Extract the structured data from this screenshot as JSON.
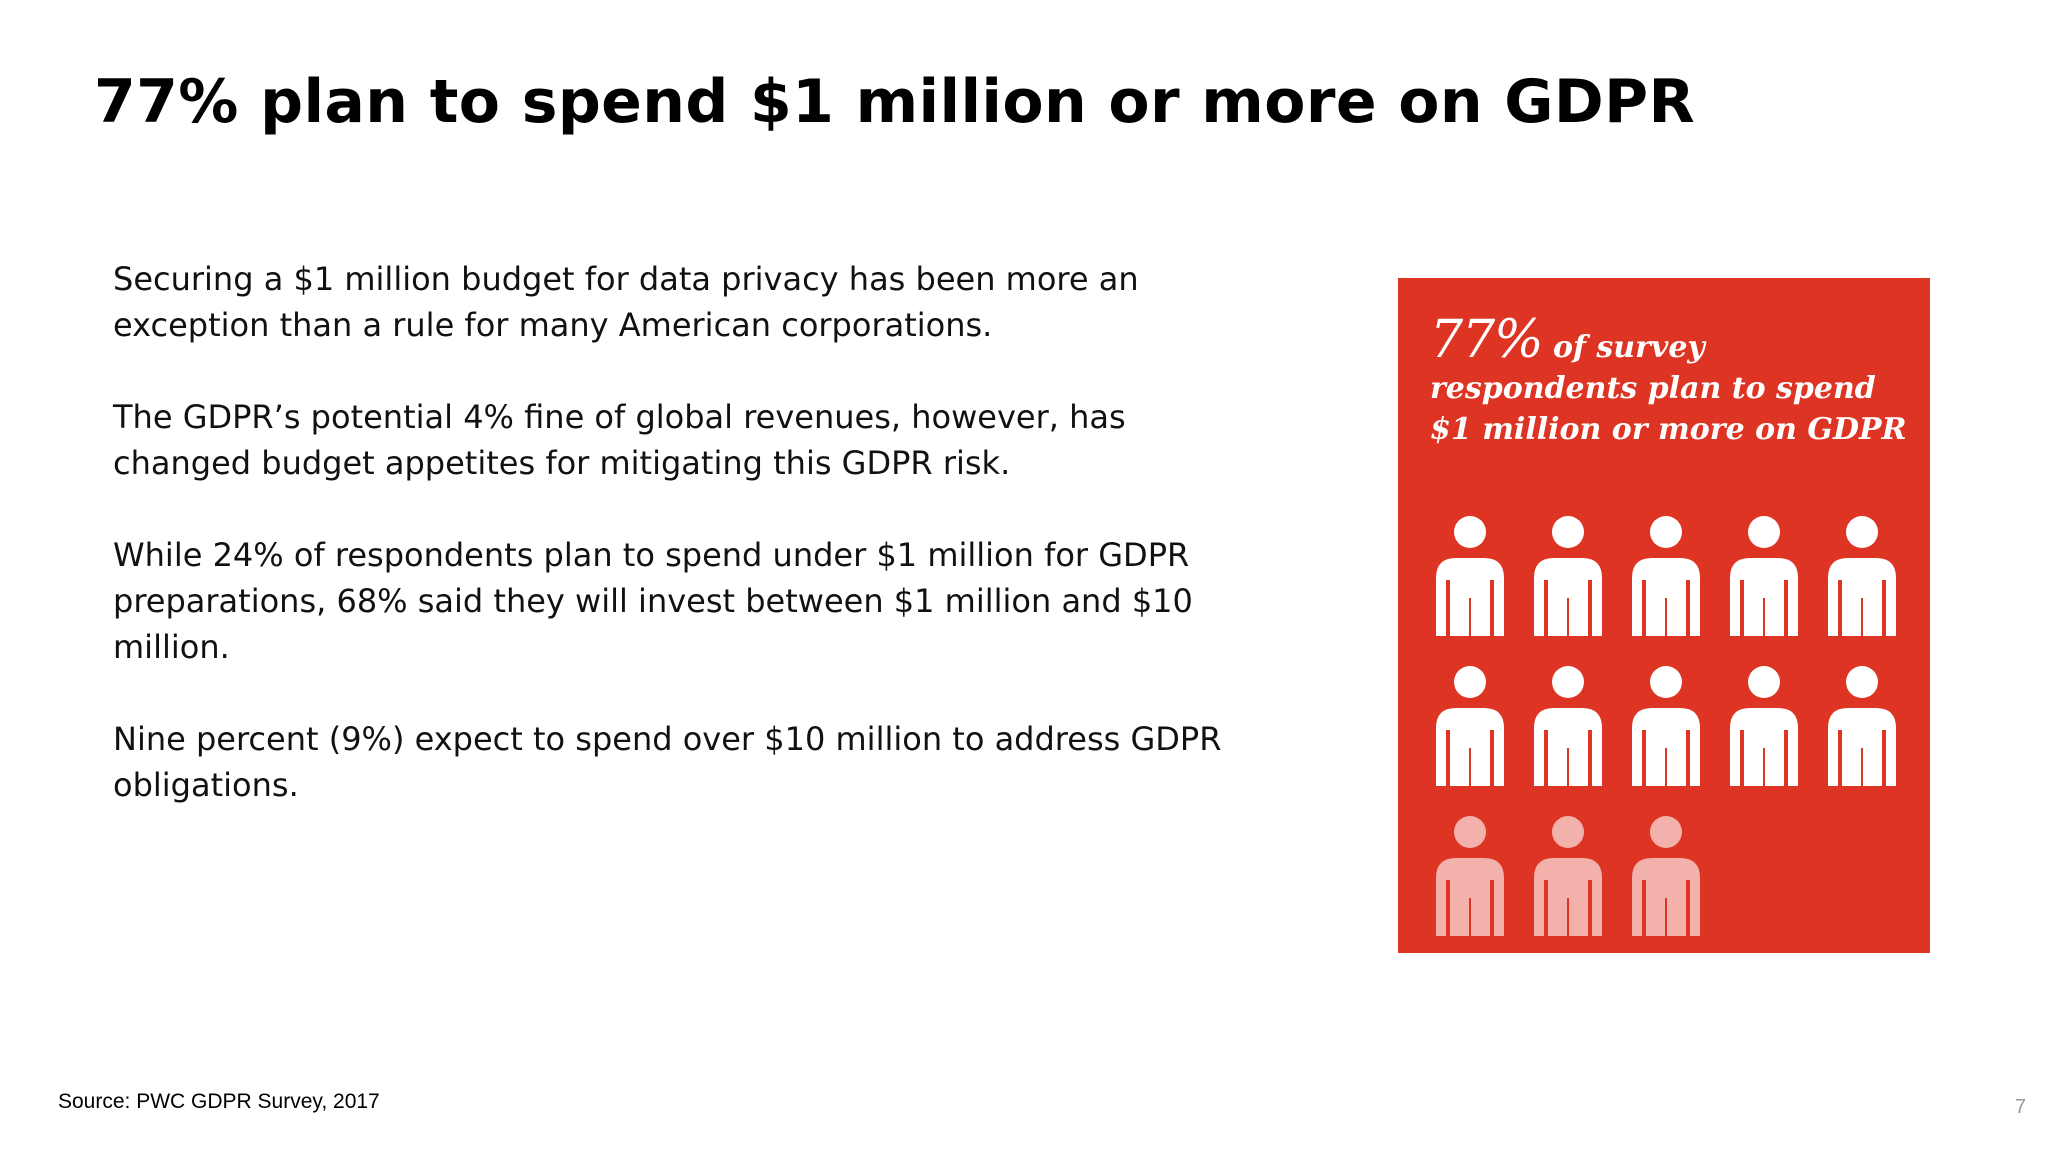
{
  "slide": {
    "title": "77% plan to spend $1 million or more on GDPR",
    "paragraphs": [
      "Securing a $1 million budget for data privacy has been more an exception than a rule for many American corporations.",
      "The GDPR’s potential 4% fine of global revenues, however, has changed budget appetites for mitigating this GDPR risk.",
      "While 24% of respondents plan to spend under $1 million for GDPR preparations, 68% said they will invest between $1 million and $10 million.",
      "Nine percent (9%) expect to spend over $10 million to address GDPR obligations."
    ],
    "source": "Source: PWC GDPR Survey, 2017",
    "page_number": "7"
  },
  "infographic": {
    "stat": "77%",
    "caption": " of survey respondents plan to spend $1 million or more on GDPR",
    "background_color": "#de3423",
    "icon": "person-icon",
    "total_icons": 13,
    "highlighted_icons": 10
  }
}
